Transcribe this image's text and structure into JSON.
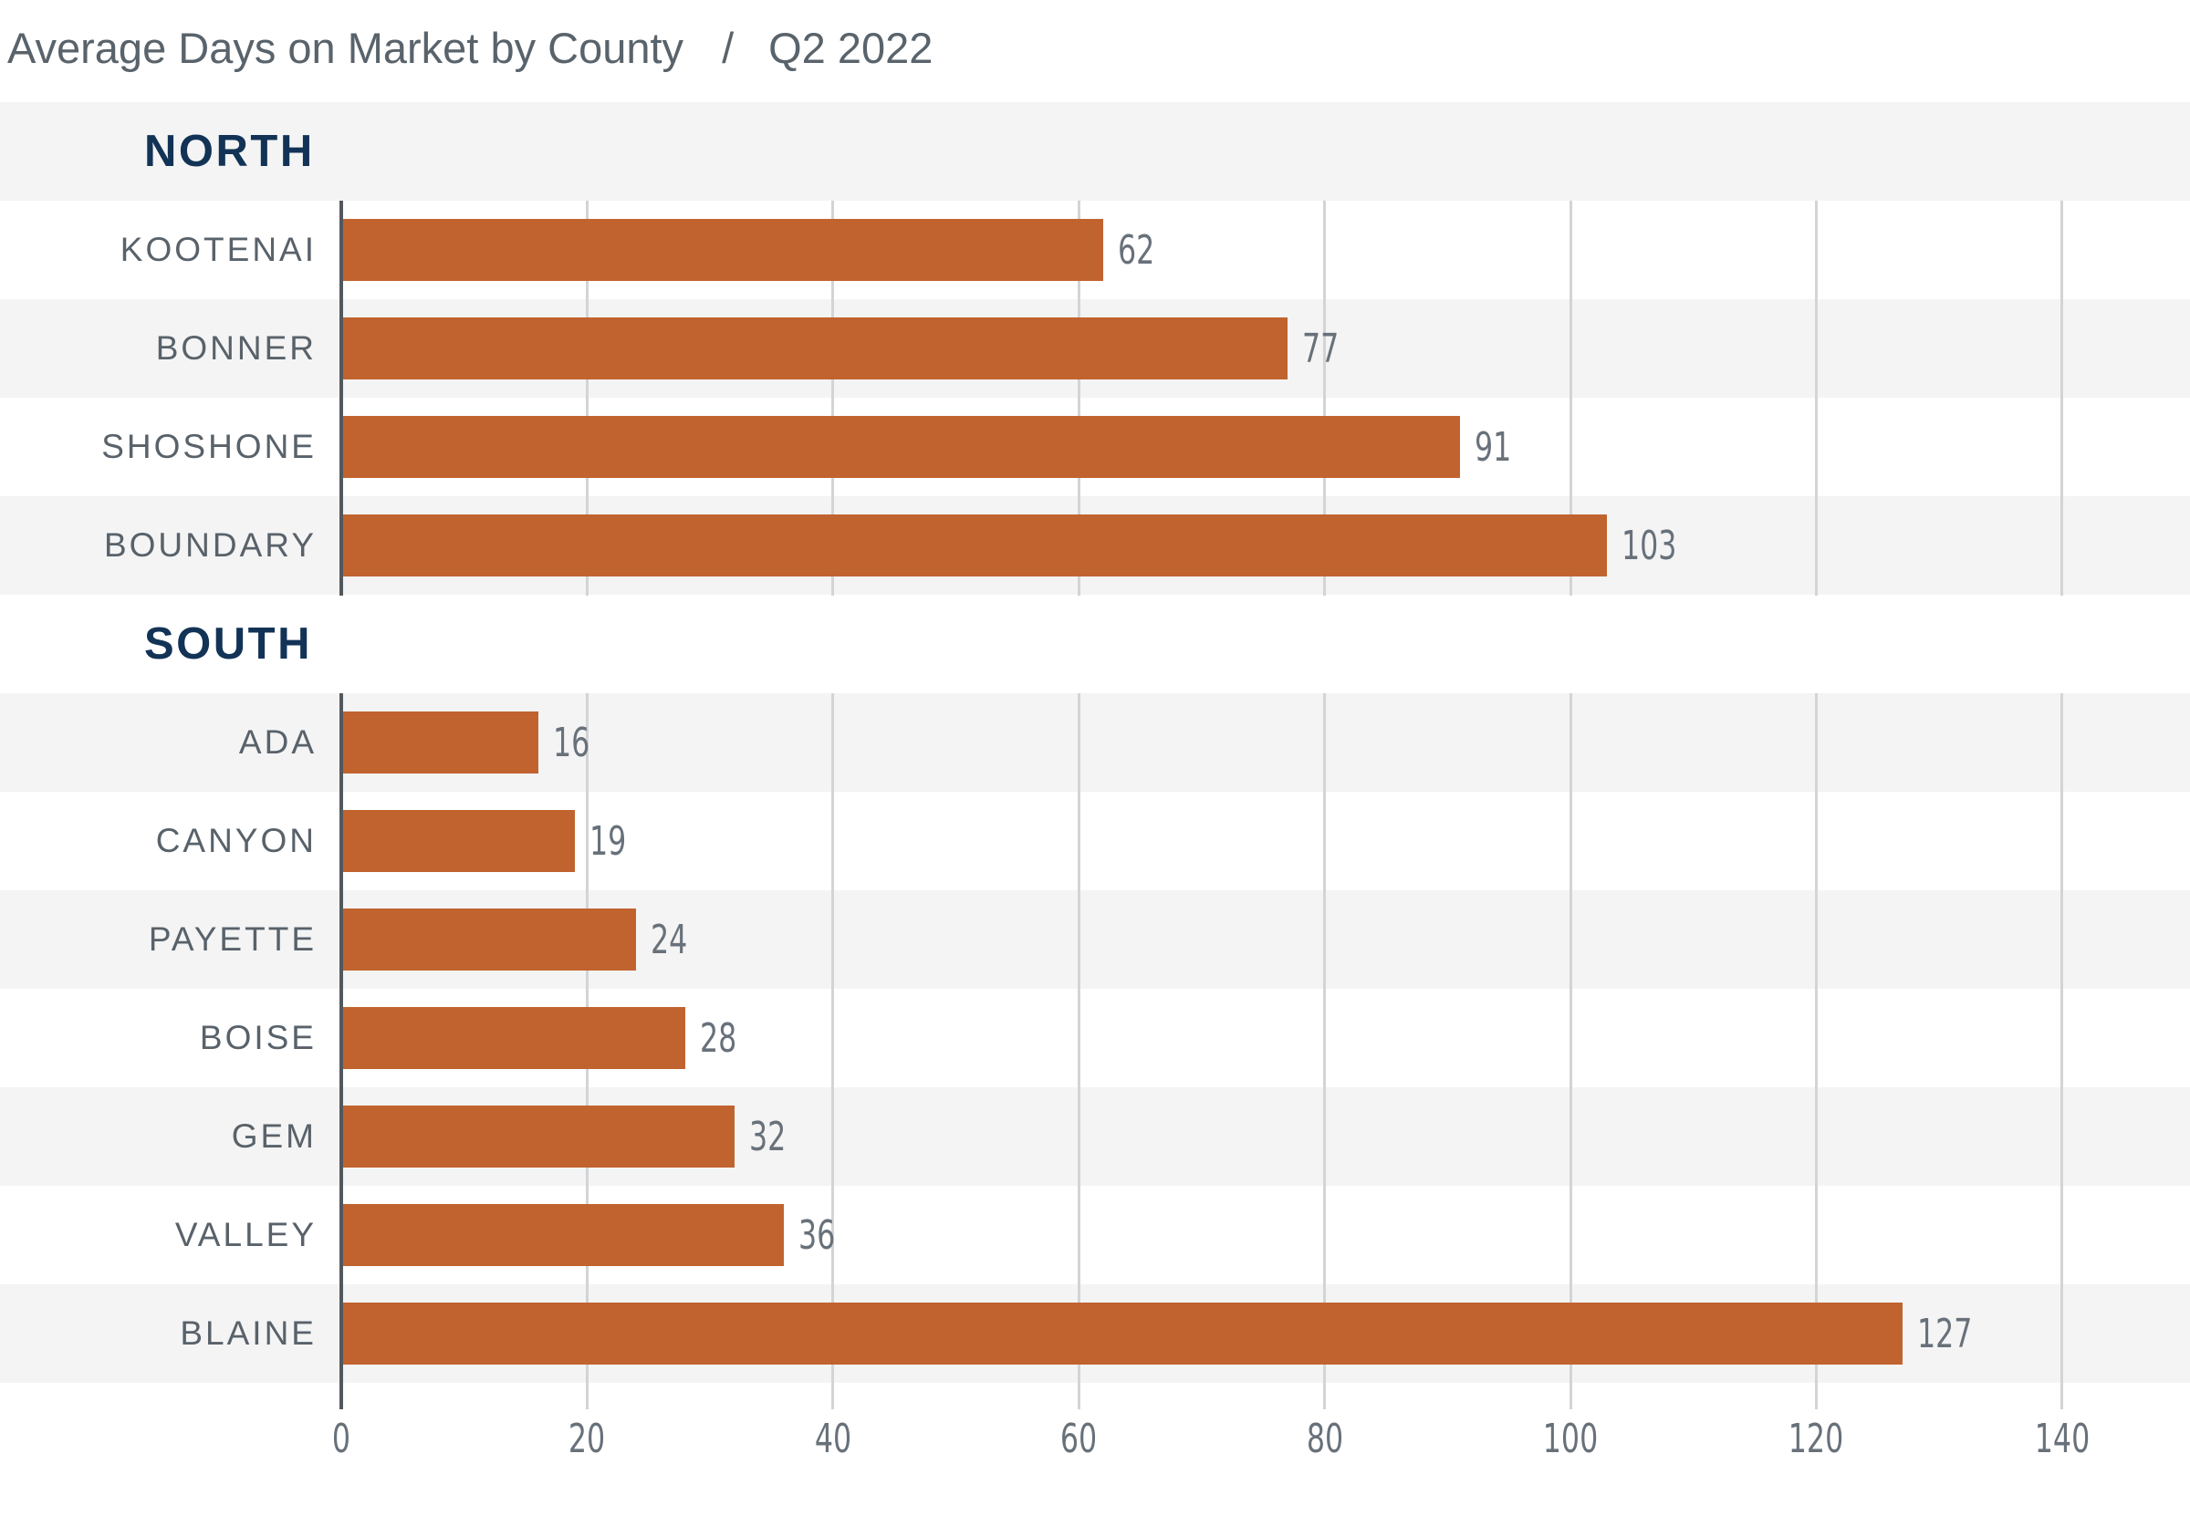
{
  "title": {
    "main": "Average Days on Market by County",
    "separator": "/",
    "period": "Q2 2022"
  },
  "colors": {
    "bar": "#C1632F",
    "navy": "#123356",
    "rowgray": "#F4F4F5",
    "titlegray": "#59636B",
    "labelgray": "#59626A",
    "valuegray": "#68717A",
    "gridline": "#D2D4D6",
    "axis": "#53585D"
  },
  "chart_data": {
    "type": "bar",
    "orientation": "horizontal",
    "title": "Average Days on Market by County",
    "subtitle": "Q2 2022",
    "xlabel": "",
    "ylabel": "",
    "x_ticks": [
      0,
      20,
      40,
      60,
      80,
      100,
      120,
      140
    ],
    "xlim": [
      0,
      150
    ],
    "grid": true,
    "legend": false,
    "bar_color": "#C1632F",
    "groups": [
      {
        "name": "NORTH",
        "rows": [
          {
            "label": "KOOTENAI",
            "value": 62
          },
          {
            "label": "BONNER",
            "value": 77
          },
          {
            "label": "SHOSHONE",
            "value": 91
          },
          {
            "label": "BOUNDARY",
            "value": 103
          }
        ]
      },
      {
        "name": "SOUTH",
        "rows": [
          {
            "label": "ADA",
            "value": 16
          },
          {
            "label": "CANYON",
            "value": 19
          },
          {
            "label": "PAYETTE",
            "value": 24
          },
          {
            "label": "BOISE",
            "value": 28
          },
          {
            "label": "GEM",
            "value": 32
          },
          {
            "label": "VALLEY",
            "value": 36
          },
          {
            "label": "BLAINE",
            "value": 127
          }
        ]
      }
    ]
  }
}
